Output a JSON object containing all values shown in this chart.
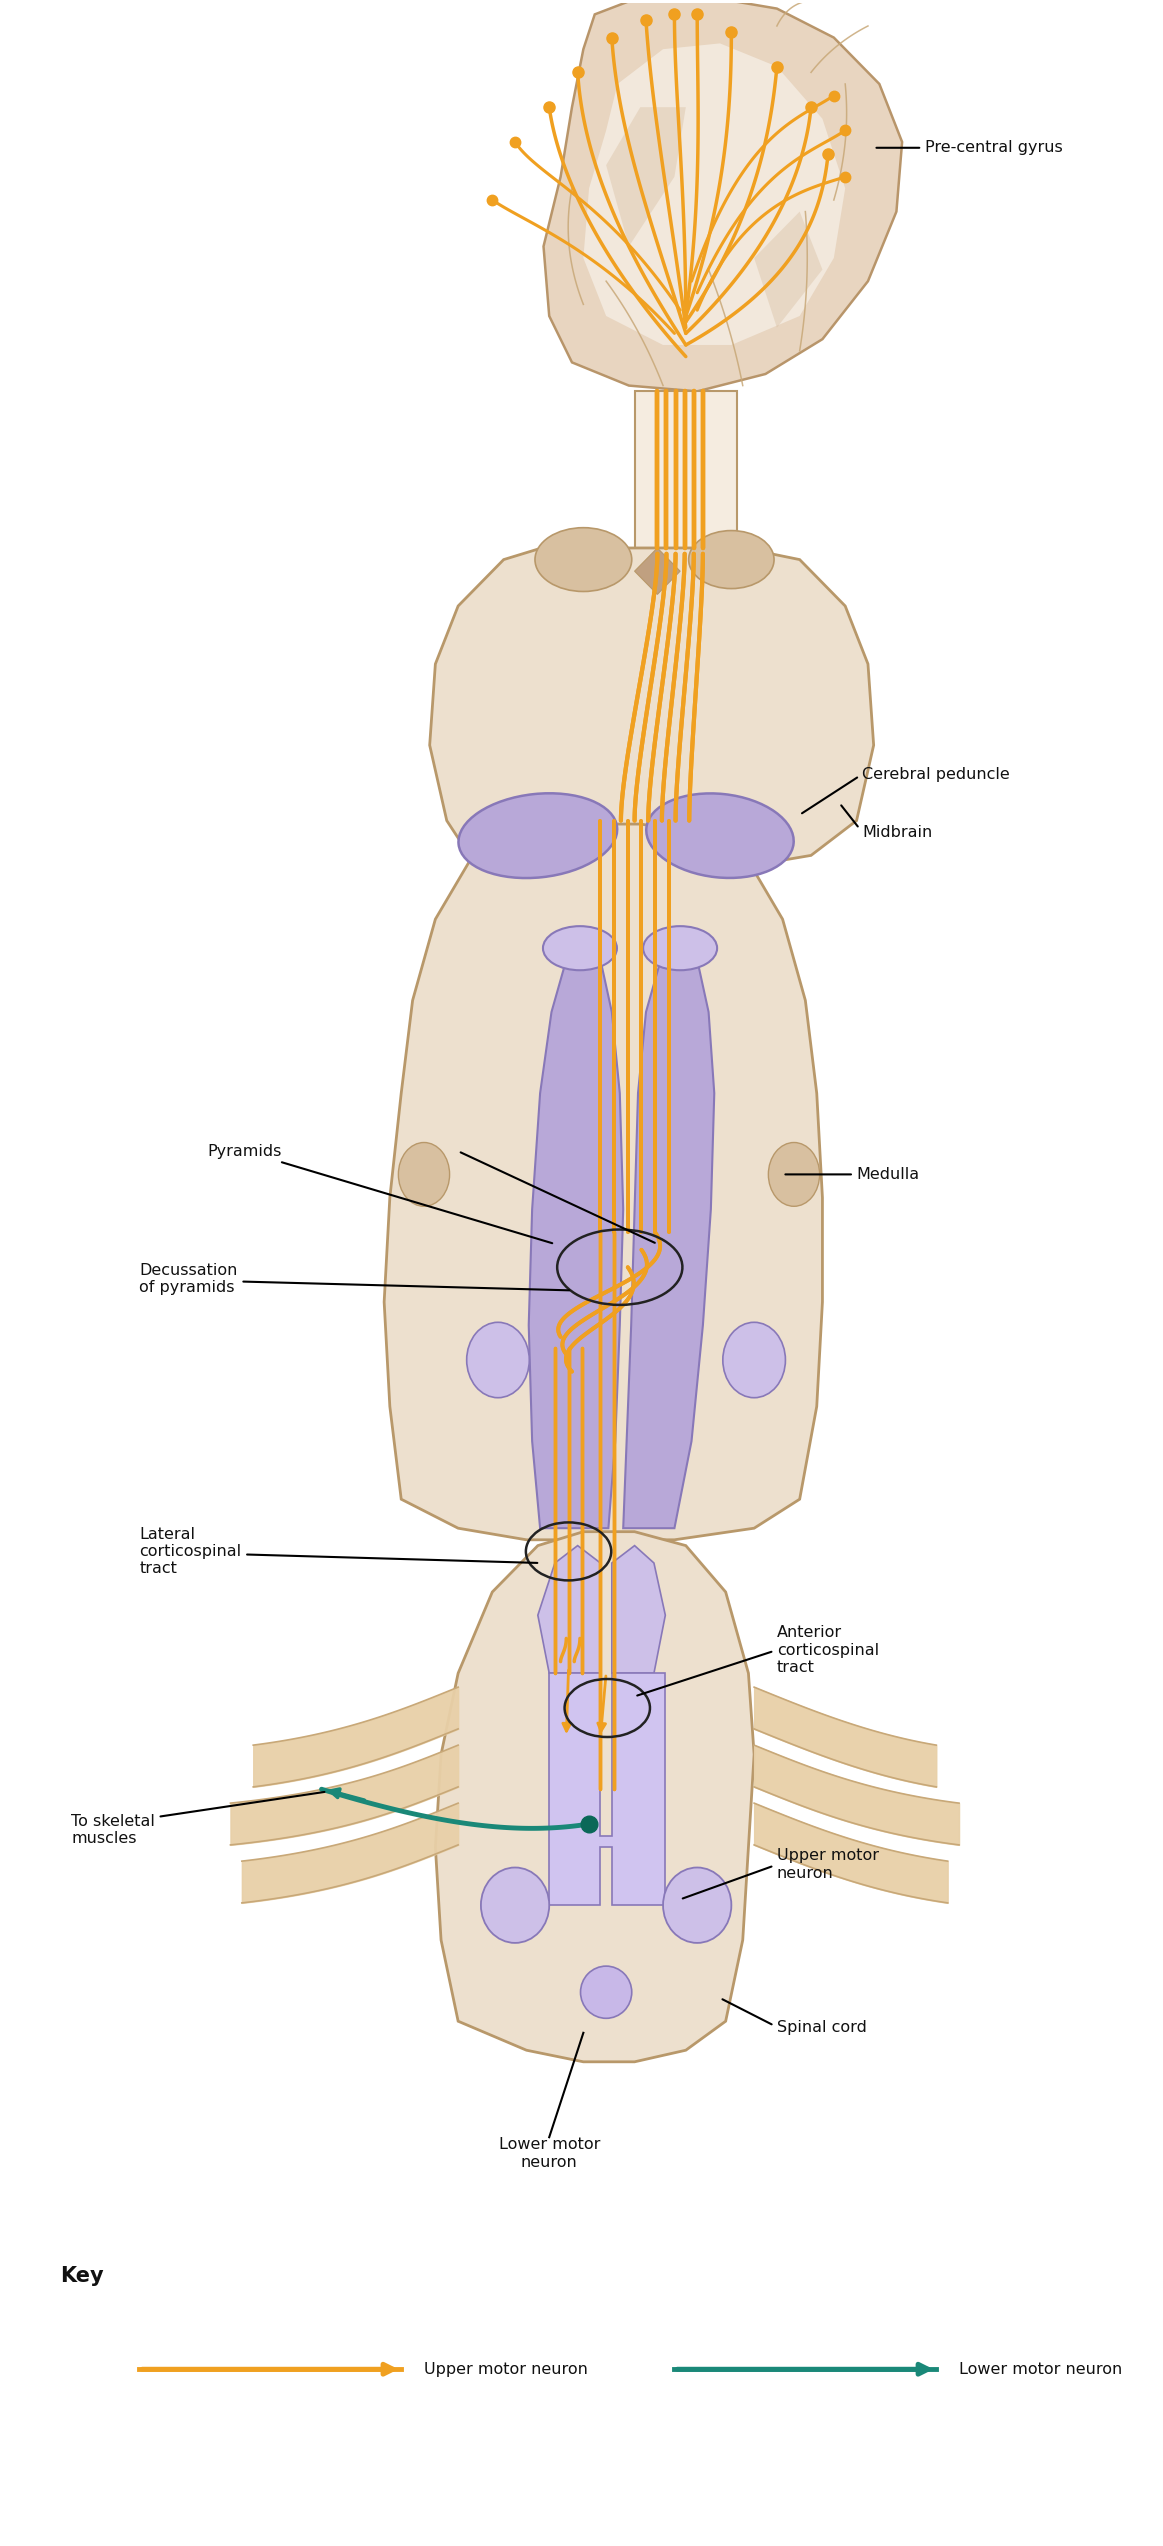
{
  "background_color": "#ffffff",
  "brain_color": "#e8d5c0",
  "brain_outline_color": "#b8956a",
  "brain_light": "#f2e8dc",
  "brain_gyrus": "#c8a878",
  "brain_shadow": "#d4b898",
  "purple_light": "#cdc0e8",
  "purple_color": "#b8a8d8",
  "purple_mid": "#a090c8",
  "purple_dark": "#8878b8",
  "neuron_color": "#f0a020",
  "neuron_light": "#f8c060",
  "teal_color": "#1a8878",
  "teal_dark": "#0a6858",
  "tissue_color": "#ede0ce",
  "tissue_light": "#f5ece0",
  "tissue_outline": "#b8986a",
  "tissue_mid": "#d8c0a0",
  "tissue_dark": "#c0a080",
  "nerve_root_color": "#e8d0a8",
  "nerve_root_outline": "#c8a878",
  "labels": {
    "pre_central_gyrus": "Pre-central gyrus",
    "cerebral_peduncle": "Cerebral peduncle",
    "midbrain": "Midbrain",
    "medulla": "Medulla",
    "pyramids": "Pyramids",
    "decussation": "Decussation\nof pyramids",
    "lateral_cst": "Lateral\ncorticospinal\ntract",
    "anterior_cst": "Anterior\ncorticospinal\ntract",
    "upper_motor": "Upper motor\nneuron",
    "spinal_cord": "Spinal cord",
    "to_skeletal": "To skeletal\nmuscles",
    "lower_motor": "Lower motor\nneuron",
    "key_title": "Key",
    "key_upper": "Upper motor neuron",
    "key_lower": "Lower motor neuron"
  },
  "figsize": [
    11.63,
    25.46
  ],
  "dpi": 100
}
